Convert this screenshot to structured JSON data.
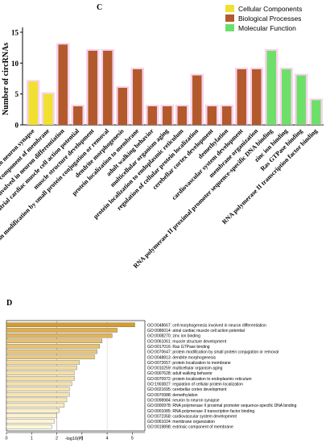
{
  "panels": {
    "c_label": "C",
    "d_label": "D"
  },
  "chart_data": [
    {
      "type": "bar",
      "ylabel": "Number of circRNAs",
      "ylim": [
        0,
        15
      ],
      "yticks": [
        0,
        5,
        10,
        15
      ],
      "legend_position": "top-right",
      "series": [
        {
          "name": "Cellular Components",
          "color": "#f0e130"
        },
        {
          "name": "Biological Processes",
          "color": "#b35a2c"
        },
        {
          "name": "Molecular Function",
          "color": "#6ee06a"
        }
      ],
      "categories": [
        "neuron to neuron synapse",
        "extrinsic component of membrane",
        "cell morphogenesis involved in neuron differentiation",
        "atrial cardiac muscle cell action potential",
        "muscle structure development",
        "protein modification by small protein conjugation or removal",
        "dendrite morphogenesis",
        "protein localization to membrane",
        "adult walking behavior",
        "multicellular organism aging",
        "protein localization to endoplasmic reticulum",
        "regulation of cellular protein localization",
        "cerebellar cortex development",
        "demethylation",
        "cardiovascular system development",
        "membrane organization",
        "RNA polymerase II proximal promoter sequence-specific DNA binding",
        "zinc ion binding",
        "Ras GTPase binding",
        "RNA polymerase II transcription factor binding"
      ],
      "values": [
        7,
        5,
        13,
        3,
        12,
        12,
        6,
        9,
        3,
        3,
        3,
        8,
        3,
        3,
        9,
        9,
        12,
        9,
        8,
        4
      ],
      "group": [
        "CC",
        "CC",
        "BP",
        "BP",
        "BP",
        "BP",
        "BP",
        "BP",
        "BP",
        "BP",
        "BP",
        "BP",
        "BP",
        "BP",
        "BP",
        "BP",
        "MF",
        "MF",
        "MF",
        "MF"
      ]
    },
    {
      "type": "bar",
      "orientation": "horizontal",
      "xlabel": "-log10(P)",
      "xlim": [
        0,
        5.5
      ],
      "xticks": [
        0,
        1,
        2,
        3,
        4,
        5
      ],
      "categories": [
        "GO:0048667: cell morphogenesis involved in neuron differentiation",
        "GO:0086014: atrial cardiac muscle cell action potential",
        "GO:0008270: zinc ion binding",
        "GO:0061061: muscle structure development",
        "GO:0017016: Ras GTPase binding",
        "GO:0070647: protein modification by small protein conjugation or removal",
        "GO:0048813: dendrite morphogenesis",
        "GO:0072657: protein localization to membrane",
        "GO:0010259: multicellular organism aging",
        "GO:0007628: adult walking behavior",
        "GO:0070972: protein localization to endoplasmic reticulum",
        "GO:1903827: regulation of cellular protein localization",
        "GO:0021695: cerebellar cortex development",
        "GO:0070988: demethylation",
        "GO:0098984: neuron to neuron synapse",
        "GO:0000978: RNA polymerase II proximal promoter sequence-specific DNA binding",
        "GO:0001085: RNA polymerase II transcription factor binding",
        "GO:0072358: cardiovascular system development",
        "GO:0061024: membrane organization",
        "GO:0019898: extrinsic component of membrane"
      ],
      "values": [
        5.1,
        4.4,
        4.2,
        3.8,
        3.7,
        3.6,
        3.5,
        2.9,
        2.8,
        2.7,
        2.7,
        2.6,
        2.5,
        2.5,
        2.4,
        2.3,
        2.1,
        2.0,
        1.9,
        1.8
      ]
    }
  ]
}
